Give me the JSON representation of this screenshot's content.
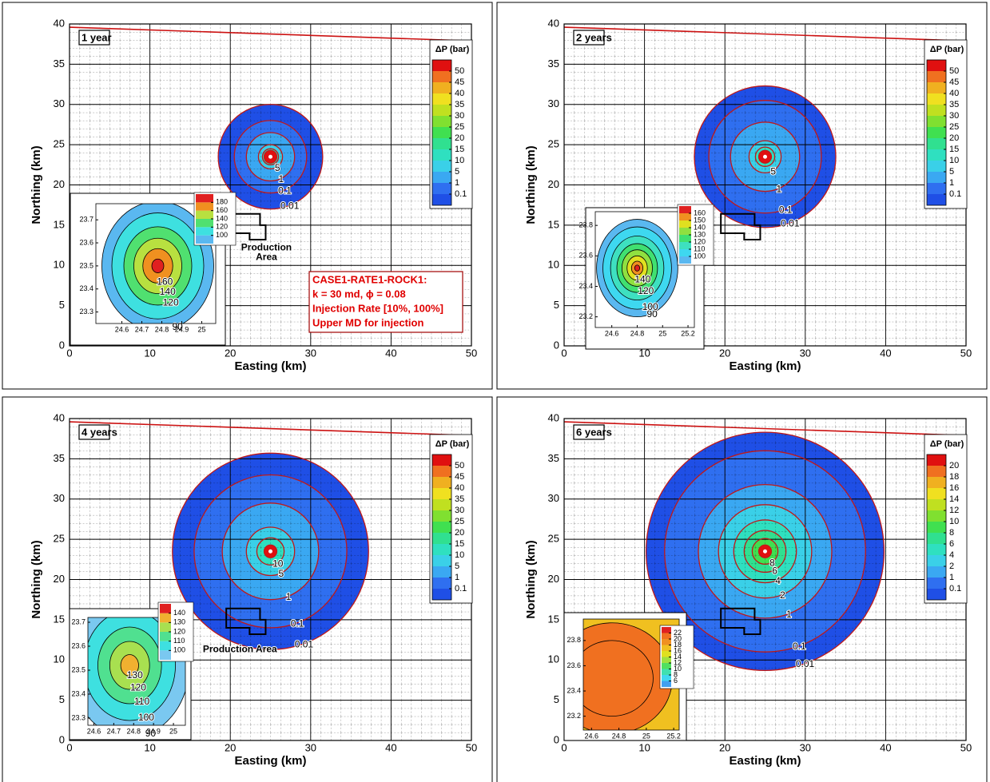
{
  "chart_data": [
    {
      "type": "contour",
      "title": "1 year",
      "x_label": "Easting (km)",
      "y_label": "Northing (km)",
      "xlim": [
        0,
        50
      ],
      "ylim": [
        0,
        40
      ],
      "xticks": [
        0,
        10,
        20,
        30,
        40,
        50
      ],
      "yticks": [
        0,
        5,
        10,
        15,
        20,
        25,
        30,
        35,
        40
      ],
      "grid": true,
      "boundary": {
        "x": [
          0,
          50
        ],
        "y": [
          39.6,
          37.9
        ],
        "color": "#cc1111"
      },
      "center": [
        25,
        23.5
      ],
      "contour_color": "#c01818",
      "contours": [
        {
          "level": 0.01,
          "radius": 6.5,
          "labeled": true
        },
        {
          "level": 0.1,
          "radius": 4.5,
          "labeled": true
        },
        {
          "level": 1,
          "radius": 3,
          "labeled": true
        },
        {
          "level": 5,
          "radius": 1.5,
          "labeled": true
        },
        {
          "level": 10,
          "radius": 1,
          "labeled": false
        }
      ],
      "colorbar": {
        "title": "ΔP (bar)",
        "ticks": [
          0.1,
          1,
          5,
          10,
          15,
          20,
          25,
          30,
          35,
          40,
          45,
          50
        ],
        "colors": [
          "#1f4fe6",
          "#2f6ff0",
          "#3aa8f2",
          "#3ad0e8",
          "#2fe0c0",
          "#30e090",
          "#40e050",
          "#80e030",
          "#c0e020",
          "#f0e020",
          "#f0b020",
          "#f07020",
          "#e01010"
        ]
      },
      "inset": {
        "xlim": [
          24.47,
          25.07
        ],
        "ylim": [
          23.25,
          23.77
        ],
        "xticks": [
          24.6,
          24.7,
          24.8,
          24.9,
          25
        ],
        "yticks": [
          23.3,
          23.4,
          23.5,
          23.6,
          23.7
        ],
        "center": [
          24.78,
          23.5
        ],
        "contours": [
          {
            "level": 90,
            "radius": 0.28,
            "labeled": true
          },
          {
            "level": 100,
            "radius": 0.23,
            "labeled": false
          },
          {
            "level": 120,
            "radius": 0.17,
            "labeled": true
          },
          {
            "level": 140,
            "radius": 0.12,
            "labeled": true
          },
          {
            "level": 160,
            "radius": 0.075,
            "labeled": true
          },
          {
            "level": 180,
            "radius": 0.03,
            "labeled": false
          }
        ],
        "colorbar": {
          "ticks": [
            100,
            120,
            140,
            160,
            180
          ],
          "colors": [
            "#5ab8f0",
            "#3ee0e0",
            "#50e070",
            "#b8e040",
            "#f09020",
            "#e02020"
          ]
        }
      },
      "annotation": [
        "CASE1-RATE1-ROCK1:",
        "k = 30 md, ϕ = 0.08",
        "Injection Rate [10%, 100%]",
        "Upper MD for injection"
      ],
      "production_label": [
        "Production",
        "Area"
      ]
    },
    {
      "type": "contour",
      "title": "2 years",
      "x_label": "Easting (km)",
      "y_label": "Northing (km)",
      "xlim": [
        0,
        50
      ],
      "ylim": [
        0,
        40
      ],
      "xticks": [
        0,
        10,
        20,
        30,
        40,
        50
      ],
      "yticks": [
        0,
        5,
        10,
        15,
        20,
        25,
        30,
        35,
        40
      ],
      "grid": true,
      "boundary": {
        "x": [
          0,
          50
        ],
        "y": [
          39.6,
          37.9
        ],
        "color": "#cc1111"
      },
      "center": [
        25,
        23.5
      ],
      "contour_color": "#c01818",
      "contours": [
        {
          "level": 0.01,
          "radius": 8.8,
          "labeled": true
        },
        {
          "level": 0.1,
          "radius": 7,
          "labeled": true
        },
        {
          "level": 1,
          "radius": 4.3,
          "labeled": true
        },
        {
          "level": 5,
          "radius": 2,
          "labeled": true
        },
        {
          "level": 10,
          "radius": 1.2,
          "labeled": false
        }
      ],
      "colorbar": {
        "title": "ΔP (bar)",
        "ticks": [
          0.1,
          1,
          5,
          10,
          15,
          20,
          25,
          30,
          35,
          40,
          45,
          50
        ],
        "colors": [
          "#1f4fe6",
          "#2f6ff0",
          "#3aa8f2",
          "#3ad0e8",
          "#2fe0c0",
          "#30e090",
          "#40e050",
          "#80e030",
          "#c0e020",
          "#f0e020",
          "#f0b020",
          "#f07020",
          "#e01010"
        ]
      },
      "inset": {
        "xlim": [
          24.47,
          25.25
        ],
        "ylim": [
          23.13,
          23.89
        ],
        "xticks": [
          24.6,
          24.8,
          25,
          25.2
        ],
        "yticks": [
          23.2,
          23.4,
          23.6,
          23.8
        ],
        "center": [
          24.8,
          23.52
        ],
        "contours": [
          {
            "level": 90,
            "radius": 0.32,
            "labeled": true
          },
          {
            "level": 100,
            "radius": 0.27,
            "labeled": true
          },
          {
            "level": 110,
            "radius": 0.21,
            "labeled": false
          },
          {
            "level": 120,
            "radius": 0.16,
            "labeled": true
          },
          {
            "level": 130,
            "radius": 0.12,
            "labeled": false
          },
          {
            "level": 140,
            "radius": 0.08,
            "labeled": true
          },
          {
            "level": 150,
            "radius": 0.045,
            "labeled": false
          },
          {
            "level": 160,
            "radius": 0.02,
            "labeled": false
          }
        ],
        "colorbar": {
          "ticks": [
            100,
            110,
            120,
            130,
            140,
            150,
            160
          ],
          "colors": [
            "#5ab8f0",
            "#3ed8f0",
            "#3ee0c0",
            "#40e070",
            "#90e040",
            "#e0e020",
            "#f09020",
            "#e02020"
          ]
        }
      }
    },
    {
      "type": "contour",
      "title": "4 years",
      "x_label": "Easting (km)",
      "y_label": "Northing (km)",
      "xlim": [
        0,
        50
      ],
      "ylim": [
        0,
        40
      ],
      "xticks": [
        0,
        10,
        20,
        30,
        40,
        50
      ],
      "yticks": [
        0,
        5,
        10,
        15,
        20,
        25,
        30,
        35,
        40
      ],
      "grid": true,
      "boundary": {
        "x": [
          0,
          50
        ],
        "y": [
          39.6,
          37.9
        ],
        "color": "#cc1111"
      },
      "center": [
        25,
        23.5
      ],
      "contour_color": "#c01818",
      "contours": [
        {
          "level": 0.01,
          "radius": 12.2,
          "labeled": true
        },
        {
          "level": 0.1,
          "radius": 9.5,
          "labeled": true
        },
        {
          "level": 1,
          "radius": 6,
          "labeled": true
        },
        {
          "level": 5,
          "radius": 3,
          "labeled": true
        },
        {
          "level": 10,
          "radius": 1.7,
          "labeled": true
        }
      ],
      "colorbar": {
        "title": "ΔP (bar)",
        "ticks": [
          0.1,
          1,
          5,
          10,
          15,
          20,
          25,
          30,
          35,
          40,
          45,
          50
        ],
        "colors": [
          "#1f4fe6",
          "#2f6ff0",
          "#3aa8f2",
          "#3ad0e8",
          "#2fe0c0",
          "#30e090",
          "#40e050",
          "#80e030",
          "#c0e020",
          "#f0e020",
          "#f0b020",
          "#f07020",
          "#e01010"
        ]
      },
      "inset": {
        "xlim": [
          24.57,
          25.06
        ],
        "ylim": [
          23.27,
          23.72
        ],
        "xticks": [
          24.6,
          24.7,
          24.8,
          24.9,
          25
        ],
        "yticks": [
          23.3,
          23.4,
          23.5,
          23.6,
          23.7
        ],
        "center": [
          24.78,
          23.52
        ],
        "contours": [
          {
            "level": 90,
            "radius": 0.3,
            "labeled": true
          },
          {
            "level": 100,
            "radius": 0.23,
            "labeled": true
          },
          {
            "level": 110,
            "radius": 0.16,
            "labeled": true
          },
          {
            "level": 120,
            "radius": 0.1,
            "labeled": true
          },
          {
            "level": 130,
            "radius": 0.045,
            "labeled": true
          }
        ],
        "colorbar": {
          "ticks": [
            100,
            110,
            120,
            130,
            140
          ],
          "colors": [
            "#7ac8f0",
            "#3ee0e0",
            "#50e090",
            "#a8e050",
            "#f0b030",
            "#e02020"
          ]
        }
      },
      "production_label": [
        "Production Area"
      ]
    },
    {
      "type": "contour",
      "title": "6 years",
      "x_label": "Easting (km)",
      "y_label": "Northing (km)",
      "xlim": [
        0,
        50
      ],
      "ylim": [
        0,
        40
      ],
      "xticks": [
        0,
        10,
        20,
        30,
        40,
        50
      ],
      "yticks": [
        0,
        5,
        10,
        15,
        20,
        25,
        30,
        35,
        40
      ],
      "grid": true,
      "boundary": {
        "x": [
          0,
          50
        ],
        "y": [
          39.6,
          37.9
        ],
        "color": "#cc1111"
      },
      "center": [
        25,
        23.5
      ],
      "contour_color": "#c01818",
      "contours": [
        {
          "level": 0.01,
          "radius": 14.8,
          "labeled": true
        },
        {
          "level": 0.1,
          "radius": 12.5,
          "labeled": true
        },
        {
          "level": 1,
          "radius": 8.3,
          "labeled": true
        },
        {
          "level": 2,
          "radius": 5.8,
          "labeled": true
        },
        {
          "level": 4,
          "radius": 3.9,
          "labeled": true
        },
        {
          "level": 6,
          "radius": 2.6,
          "labeled": true
        },
        {
          "level": 8,
          "radius": 1.6,
          "labeled": true
        }
      ],
      "colorbar": {
        "title": "ΔP (bar)",
        "ticks": [
          0.1,
          1,
          2,
          4,
          6,
          8,
          10,
          12,
          14,
          16,
          18,
          20
        ],
        "colors": [
          "#1f4fe6",
          "#2f6ff0",
          "#3aa8f2",
          "#3ad0e8",
          "#2fe0c0",
          "#30e090",
          "#40e050",
          "#80e030",
          "#c0e020",
          "#f0e020",
          "#f0b020",
          "#f07020",
          "#e01010"
        ]
      },
      "inset": {
        "xlim": [
          24.54,
          25.24
        ],
        "ylim": [
          23.09,
          23.97
        ],
        "xticks": [
          24.6,
          24.8,
          25,
          25.2
        ],
        "yticks": [
          23.2,
          23.4,
          23.6,
          23.8
        ],
        "center": [
          24.75,
          23.5
        ],
        "background": "#f0c020",
        "contours": [
          {
            "level": 20,
            "radius": 0.44,
            "labeled": false
          },
          {
            "level": 21,
            "radius": 0.3,
            "labeled": false
          }
        ],
        "colorbar": {
          "ticks": [
            6,
            8,
            10,
            12,
            14,
            16,
            18,
            20,
            22
          ],
          "colors": [
            "#40a0f0",
            "#40d8f0",
            "#40e0b0",
            "#50e060",
            "#a0e040",
            "#e0e020",
            "#f0c020",
            "#f09020",
            "#f07020",
            "#e02020"
          ]
        }
      }
    }
  ]
}
